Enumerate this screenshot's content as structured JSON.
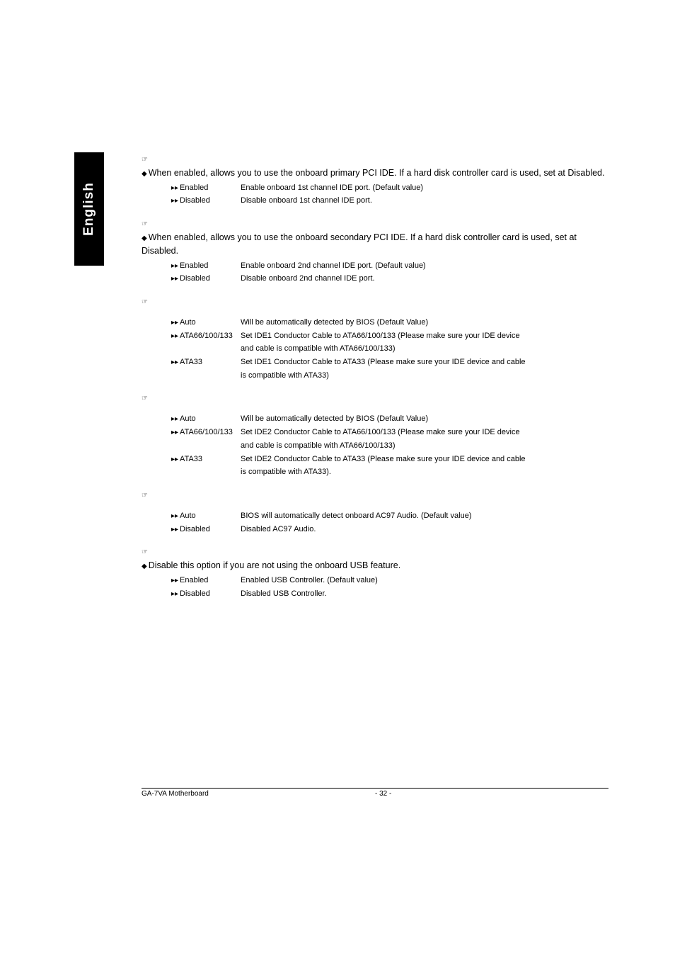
{
  "language": "English",
  "sections": [
    {
      "type": "header-bullet",
      "bullet1": "When enabled, allows you to use the onboard primary PCI IDE. If a hard disk controller card is used, set at Disabled.",
      "options": [
        {
          "key": "Enabled",
          "desc": "Enable onboard 1st channel IDE port. (Default value)"
        },
        {
          "key": "Disabled",
          "desc": "Disable onboard 1st channel IDE port."
        }
      ]
    },
    {
      "type": "header-bullet",
      "bullet1": "When enabled, allows you to use the onboard secondary PCI IDE. If a hard disk controller card is used, set at Disabled.",
      "options": [
        {
          "key": "Enabled",
          "desc": "Enable onboard 2nd channel IDE port. (Default value)"
        },
        {
          "key": "Disabled",
          "desc": "Disable onboard 2nd channel IDE port."
        }
      ]
    },
    {
      "type": "options-only",
      "options": [
        {
          "key": "Auto",
          "desc": "Will be automatically detected by BIOS (Default Value)"
        },
        {
          "key": "ATA66/100/133",
          "desc": "Set IDE1 Conductor Cable to ATA66/100/133 (Please make sure your IDE device",
          "cont": "and cable is compatible with ATA66/100/133)"
        },
        {
          "key": "ATA33",
          "desc": "Set IDE1 Conductor Cable to ATA33 (Please make sure your IDE device and cable",
          "cont": " is compatible with ATA33)"
        }
      ]
    },
    {
      "type": "options-only",
      "options": [
        {
          "key": "Auto",
          "desc": "Will be automatically detected by BIOS (Default Value)"
        },
        {
          "key": "ATA66/100/133",
          "desc": "Set IDE2 Conductor Cable to ATA66/100/133 (Please make sure your IDE device",
          "cont": "and cable is compatible with ATA66/100/133)"
        },
        {
          "key": "ATA33",
          "desc": "Set IDE2 Conductor Cable to ATA33 (Please make sure your IDE device and cable",
          "cont": "is compatible with ATA33)."
        }
      ]
    },
    {
      "type": "options-only",
      "options": [
        {
          "key": "Auto",
          "desc": "BIOS will automatically detect onboard AC97 Audio.  (Default value)"
        },
        {
          "key": "Disabled",
          "desc": "Disabled AC97 Audio."
        }
      ]
    },
    {
      "type": "header-bullet-short",
      "bullet1": "Disable this option if you are not using the onboard USB feature.",
      "options": [
        {
          "key": "Enabled",
          "desc": "Enabled USB Controller. (Default value)"
        },
        {
          "key": "Disabled",
          "desc": "Disabled USB Controller."
        }
      ]
    }
  ],
  "footer": {
    "left": "GA-7VA Motherboard",
    "right": "- 32 -"
  },
  "glyphs": {
    "pointer": "☞",
    "diamond": "◆",
    "arrow": "▸▸"
  }
}
